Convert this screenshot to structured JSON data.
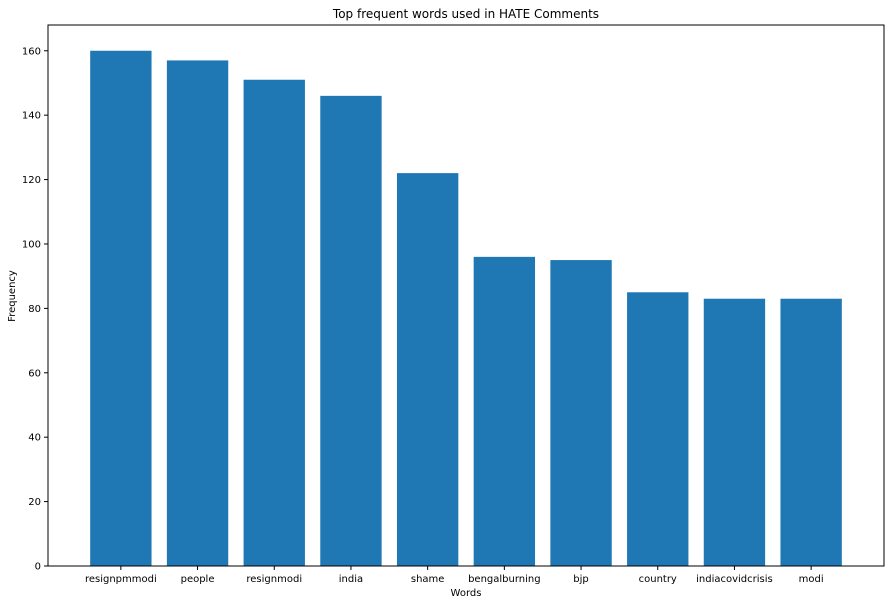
{
  "chart_data": {
    "type": "bar",
    "title": "Top frequent words used in HATE Comments",
    "xlabel": "Words",
    "ylabel": "Frequency",
    "categories": [
      "resignpmmodi",
      "people",
      "resignmodi",
      "india",
      "shame",
      "bengalburning",
      "bjp",
      "country",
      "indiacovidcrisis",
      "modi"
    ],
    "values": [
      160,
      157,
      151,
      146,
      122,
      96,
      95,
      85,
      83,
      83
    ],
    "ylim": [
      0,
      168
    ],
    "yticks": [
      0,
      20,
      40,
      60,
      80,
      100,
      120,
      140,
      160
    ],
    "grid": false,
    "bar_color": "#1f77b4"
  }
}
